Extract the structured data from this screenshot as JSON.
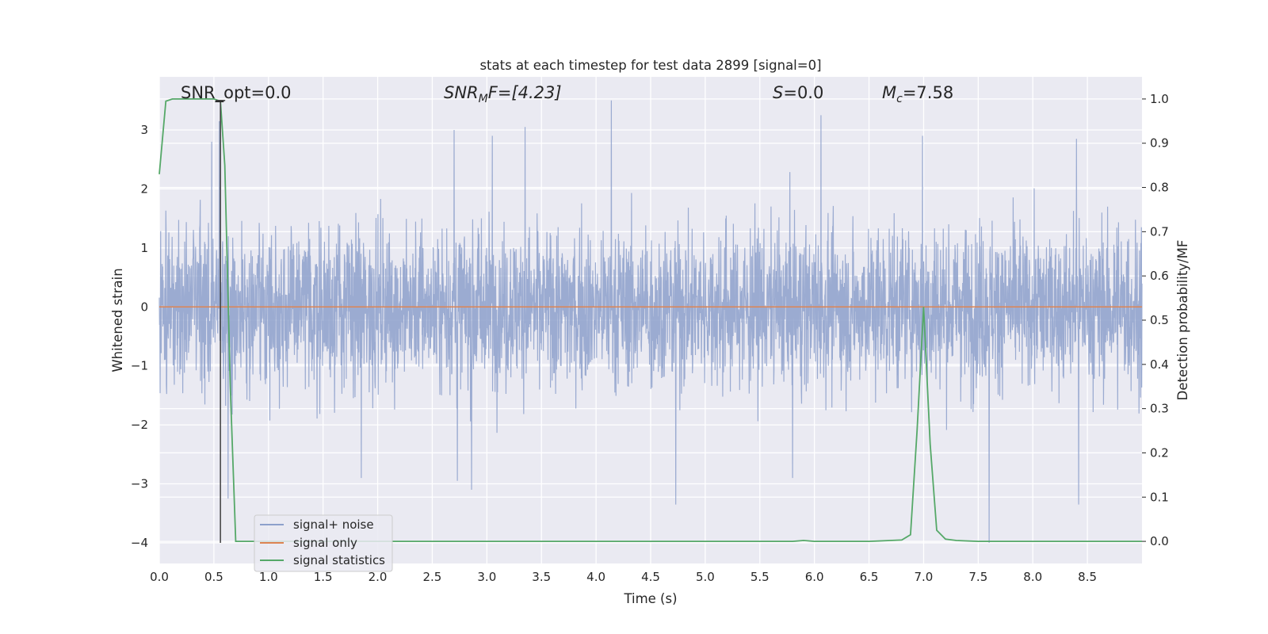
{
  "chart_data": {
    "type": "line",
    "title": "stats at each timestep for test data 2899 [signal=0]",
    "xlabel": "Time (s)",
    "ylabel": "Whitened strain",
    "ylabel_right": "Detection probability/MF",
    "xlim": [
      0.0,
      9.0
    ],
    "ylim": [
      -4.35,
      3.9
    ],
    "ylim_right": [
      -0.05,
      1.05
    ],
    "x_ticks": [
      0.0,
      0.5,
      1.0,
      1.5,
      2.0,
      2.5,
      3.0,
      3.5,
      4.0,
      4.5,
      5.0,
      5.5,
      6.0,
      6.5,
      7.0,
      7.5,
      8.0,
      8.5
    ],
    "x_tick_labels": [
      "0.0",
      "0.5",
      "1.0",
      "1.5",
      "2.0",
      "2.5",
      "3.0",
      "3.5",
      "4.0",
      "4.5",
      "5.0",
      "5.5",
      "6.0",
      "6.5",
      "7.0",
      "7.5",
      "8.0",
      "8.5"
    ],
    "y_ticks": [
      3,
      2,
      1,
      0,
      -1,
      -2,
      -3,
      -4
    ],
    "y_tick_labels": [
      "3",
      "2",
      "1",
      "0",
      "−1",
      "−2",
      "−3",
      "−4"
    ],
    "y_right_ticks": [
      1.0,
      0.9,
      0.8,
      0.7,
      0.6,
      0.5,
      0.4,
      0.3,
      0.2,
      0.1,
      0.0
    ],
    "y_right_tick_labels": [
      "1.0",
      "0.9",
      "0.8",
      "0.7",
      "0.6",
      "0.5",
      "0.4",
      "0.3",
      "0.2",
      "0.1",
      "0.0"
    ],
    "grid": true,
    "legend_position": "lower-left",
    "legend": [
      "signal+ noise",
      "signal only",
      "signal statistics"
    ],
    "colors": {
      "noise": "#8da0cb",
      "signal": "#dd8452",
      "stats": "#55a868",
      "marker": "#404040",
      "background": "#eaeaf2",
      "grid": "#ffffff"
    },
    "annotations": {
      "snr_opt": "SNR_opt=0.0",
      "snr_mf_main": "SNR",
      "snr_mf_sub": "M",
      "snr_mf_rest": "F=[4.23]",
      "s_main": "S",
      "s_rest": "=0.0",
      "mc_main": "M",
      "mc_sub": "c",
      "mc_rest": "=7.58"
    },
    "series": [
      {
        "name": "signal+ noise",
        "axis": "left",
        "description_values": "dense whitened noise, mostly within ±2, peaks near 3.5",
        "peaks": [
          {
            "x": 0.55,
            "y": 3.15
          },
          {
            "x": 0.48,
            "y": 2.8
          },
          {
            "x": 2.7,
            "y": 3.0
          },
          {
            "x": 3.05,
            "y": 2.9
          },
          {
            "x": 3.35,
            "y": 3.05
          },
          {
            "x": 4.14,
            "y": 3.5
          },
          {
            "x": 6.06,
            "y": 3.25
          },
          {
            "x": 6.99,
            "y": 2.9
          },
          {
            "x": 8.4,
            "y": 2.85
          },
          {
            "x": 2.73,
            "y": -2.95
          },
          {
            "x": 2.86,
            "y": -3.1
          },
          {
            "x": 4.73,
            "y": -3.35
          },
          {
            "x": 7.6,
            "y": -4.0
          },
          {
            "x": 8.42,
            "y": -3.35
          },
          {
            "x": 0.63,
            "y": -3.25
          },
          {
            "x": 5.8,
            "y": -2.9
          },
          {
            "x": 1.85,
            "y": -2.9
          }
        ]
      },
      {
        "name": "signal only",
        "axis": "left",
        "x": [
          0.0,
          9.0
        ],
        "y": [
          0.0,
          0.0
        ]
      },
      {
        "name": "signal statistics",
        "axis": "right",
        "x": [
          0.0,
          0.06,
          0.12,
          0.2,
          0.3,
          0.4,
          0.5,
          0.56,
          0.6,
          0.65,
          0.7,
          1.0,
          2.0,
          3.0,
          4.0,
          5.0,
          5.8,
          5.9,
          6.0,
          6.5,
          6.8,
          6.88,
          6.94,
          7.0,
          7.06,
          7.12,
          7.2,
          7.3,
          7.5,
          8.0,
          8.5,
          9.0
        ],
        "y": [
          0.83,
          0.995,
          1.0,
          1.0,
          1.0,
          1.0,
          1.0,
          0.995,
          0.85,
          0.35,
          0.0,
          0.0,
          0.0,
          0.0,
          0.0,
          0.0,
          0.0,
          0.002,
          0.0,
          0.0,
          0.003,
          0.015,
          0.25,
          0.53,
          0.22,
          0.025,
          0.005,
          0.002,
          0.0,
          0.0,
          0.0,
          0.0
        ]
      }
    ],
    "marker_line": {
      "x": 0.56,
      "y_top": 3.5,
      "y_bottom": -4.0
    }
  }
}
